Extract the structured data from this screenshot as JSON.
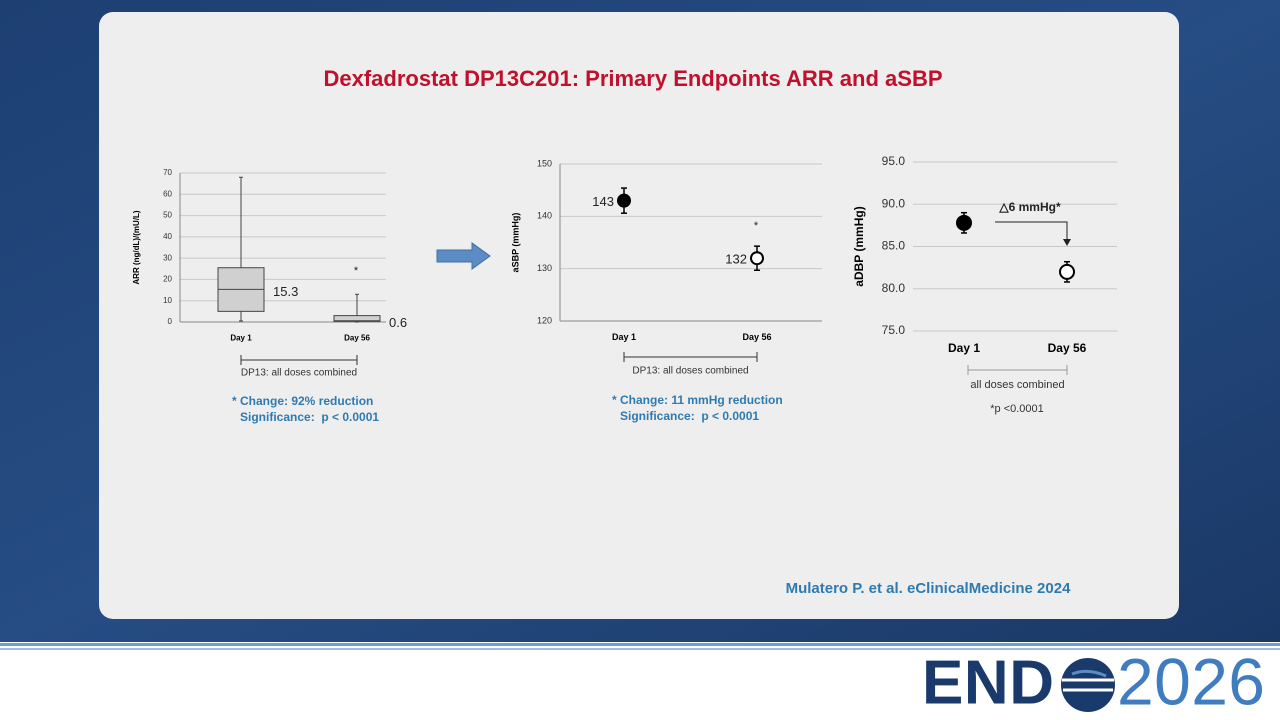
{
  "title": "Dexfadrostat DP13C201: Primary Endpoints ARR and aSBP",
  "citation": "Mulatero P. et al. eClinicalMedicine 2024",
  "logo": {
    "brand": "END",
    "year": "2026"
  },
  "chart_data": [
    {
      "type": "box",
      "ylabel": "ARR (ng/dL)/(mU/L)",
      "categories": [
        "Day 1",
        "Day 56"
      ],
      "boxes": [
        {
          "low": 0.5,
          "q1": 5,
          "median": 15.3,
          "q3": 25.5,
          "high": 68
        },
        {
          "low": 0,
          "q1": 0.3,
          "median": 0.6,
          "q3": 3,
          "high": 13
        }
      ],
      "color": "#d0d0d0",
      "ylim": [
        0,
        70
      ],
      "yticks": [
        0,
        10,
        20,
        30,
        40,
        50,
        60,
        70
      ],
      "grid": true,
      "annotations": [
        "*"
      ],
      "bracket_label": "DP13: all doses combined",
      "notes": [
        "* Change: 92% reduction",
        "Significance:  p < 0.0001"
      ]
    },
    {
      "type": "errorbar",
      "ylabel": "aSBP (mmHg)",
      "categories": [
        "Day 1",
        "Day 56"
      ],
      "values": [
        143,
        132
      ],
      "errors": [
        2.4,
        2.3
      ],
      "point_colors": [
        "#000000",
        "#ffffff"
      ],
      "ylim": [
        120,
        150
      ],
      "yticks": [
        120,
        130,
        140,
        150
      ],
      "grid": true,
      "annotations": [
        "*"
      ],
      "bracket_label": "DP13: all doses combined",
      "notes": [
        "* Change: 11 mmHg reduction",
        "Significance:  p < 0.0001"
      ]
    },
    {
      "type": "errorbar",
      "ylabel": "aDBP (mmHg)",
      "categories": [
        "Day 1",
        "Day 56"
      ],
      "values": [
        87.8,
        82
      ],
      "errors": [
        1.2,
        1.2
      ],
      "point_colors": [
        "#000000",
        "#ffffff"
      ],
      "ylim": [
        75,
        95
      ],
      "yticks": [
        {
          "value": 75,
          "label": "75.0"
        },
        {
          "value": 80,
          "label": "80.0"
        },
        {
          "value": 85,
          "label": "85.0"
        },
        {
          "value": 90,
          "label": "90.0"
        },
        {
          "value": 95,
          "label": "95.0"
        }
      ],
      "grid": true,
      "annotations": [
        "△6 mmHg*"
      ],
      "bracket_label": "all doses combined",
      "notes": [
        "*p <0.0001"
      ]
    }
  ]
}
